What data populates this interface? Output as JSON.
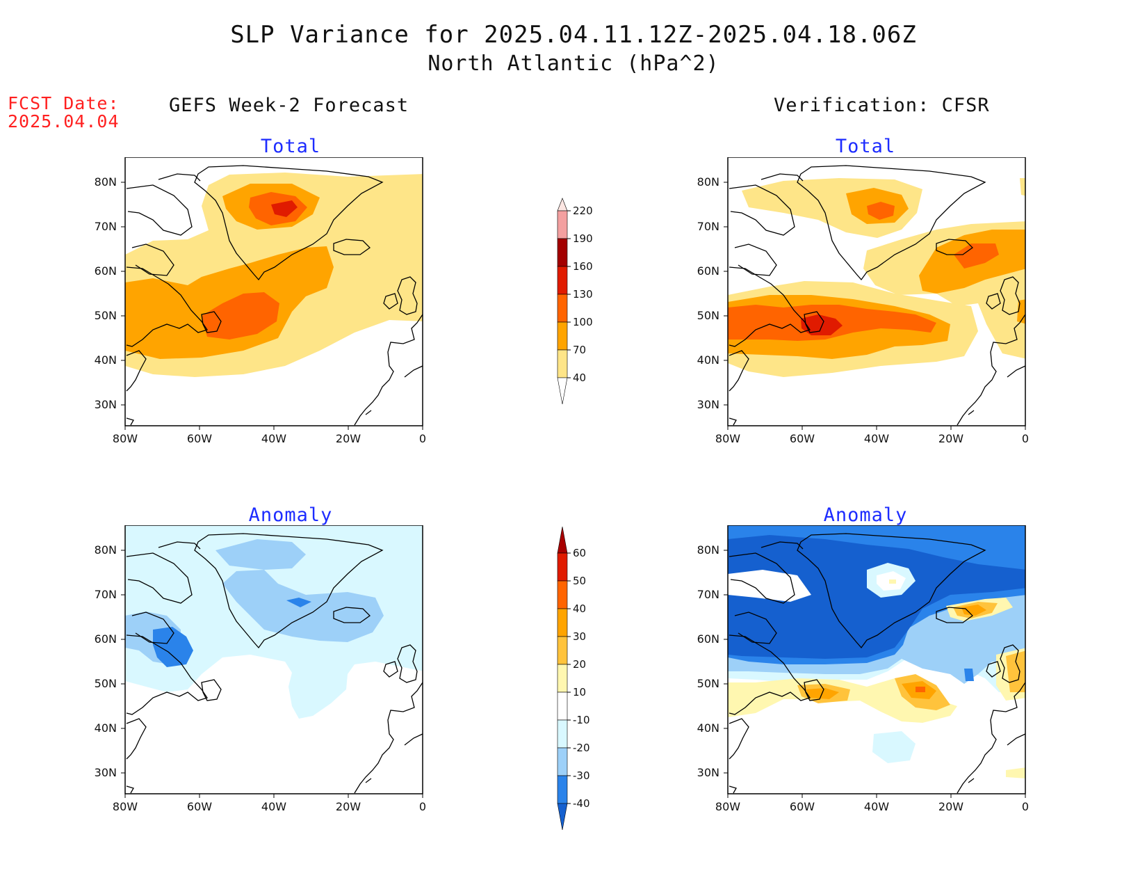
{
  "title": {
    "line1": "SLP Variance for 2025.04.11.12Z-2025.04.18.06Z",
    "line2": "North Atlantic (hPa^2)"
  },
  "forecast_date": {
    "label": "FCST Date:",
    "value": "2025.04.04"
  },
  "columns": {
    "left": "GEFS Week-2 Forecast",
    "right": "Verification: CFSR"
  },
  "panels": {
    "top_left": "Total",
    "top_right": "Total",
    "bottom_left": "Anomaly",
    "bottom_right": "Anomaly"
  },
  "axes": {
    "lat_ticks": [
      "80N",
      "70N",
      "60N",
      "50N",
      "40N",
      "30N"
    ],
    "lon_ticks": [
      "80W",
      "60W",
      "40W",
      "20W",
      "0"
    ]
  },
  "colorbars": {
    "total": {
      "levels": [
        "40",
        "70",
        "100",
        "130",
        "160",
        "190",
        "220"
      ],
      "colors": [
        "#fee588",
        "#ffa400",
        "#ff6400",
        "#e01b00",
        "#a30000",
        "#f3a0a0",
        "#fde6e2"
      ]
    },
    "anomaly": {
      "levels": [
        "-40",
        "-30",
        "-20",
        "-10",
        "10",
        "20",
        "30",
        "40",
        "50",
        "60"
      ],
      "colors": [
        "#1560cf",
        "#2a83ea",
        "#9dd0f8",
        "#d9f8ff",
        "#ffffff",
        "#fff7b0",
        "#ffc33c",
        "#ffa400",
        "#ff6400",
        "#e01b00",
        "#a80000"
      ]
    }
  },
  "colors": {
    "title_text": "#111111",
    "forecast_date_text": "#ff2020",
    "panel_title_text": "#1d2cff"
  }
}
